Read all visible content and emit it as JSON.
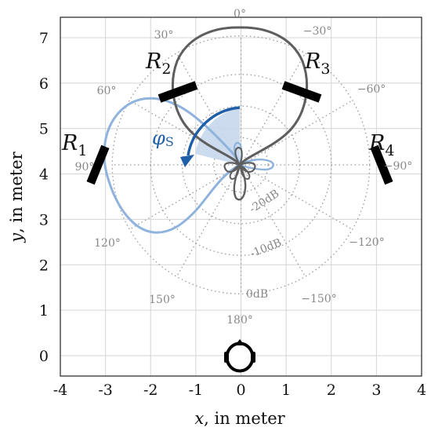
{
  "axes": {
    "xlabel_var": "x",
    "xlabel_rest": ", in meter",
    "ylabel_var": "y",
    "ylabel_rest": ", in meter",
    "xticks": [
      "-4",
      "-3",
      "-2",
      "-1",
      "0",
      "1",
      "2",
      "3",
      "4"
    ],
    "yticks": [
      "0",
      "1",
      "2",
      "3",
      "4",
      "5",
      "6",
      "7"
    ],
    "xlim": [
      -4,
      4
    ],
    "ylim": [
      -0.45,
      7.45
    ],
    "grid": true
  },
  "polar_grid": {
    "center": [
      0,
      4.2
    ],
    "angle_labels": [
      "0°",
      "30°",
      "−30°",
      "60°",
      "−60°",
      "90°",
      "−90°",
      "120°",
      "−120°",
      "150°",
      "−150°",
      "180°"
    ],
    "db_labels": [
      "-20dB",
      "-10dB",
      "0dB"
    ]
  },
  "receivers": [
    {
      "letter": "R",
      "sub": "1"
    },
    {
      "letter": "R",
      "sub": "2"
    },
    {
      "letter": "R",
      "sub": "3"
    },
    {
      "letter": "R",
      "sub": "4"
    }
  ],
  "source_angle": {
    "symbol": "φ",
    "sub": "S"
  },
  "colors": {
    "grid": "#d4d4d4",
    "polar_grid": "#9a9a9a",
    "pattern_rotated": "#8fb3dc",
    "pattern_front": "#5e5e5e",
    "angle_arrow": "#1f5fa8",
    "angle_fill": "#c7d8ec",
    "receiver": "#000000"
  },
  "icons": [
    "head-icon"
  ]
}
